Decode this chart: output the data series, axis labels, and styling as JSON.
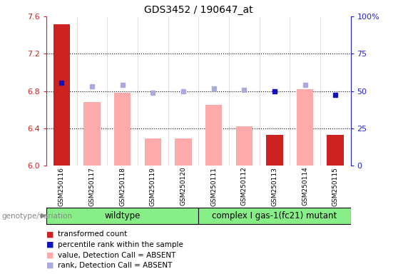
{
  "title": "GDS3452 / 190647_at",
  "samples": [
    "GSM250116",
    "GSM250117",
    "GSM250118",
    "GSM250119",
    "GSM250120",
    "GSM250111",
    "GSM250112",
    "GSM250113",
    "GSM250114",
    "GSM250115"
  ],
  "ylim_left": [
    6.0,
    7.6
  ],
  "ylim_right": [
    0,
    100
  ],
  "yticks_left": [
    6.0,
    6.4,
    6.8,
    7.2,
    7.6
  ],
  "yticks_right": [
    0,
    25,
    50,
    75,
    100
  ],
  "ytick_right_labels": [
    "0",
    "25",
    "50",
    "75",
    "100%"
  ],
  "dotted_lines": [
    7.2,
    6.8,
    6.4
  ],
  "transformed_count": {
    "GSM250116": 7.52,
    "GSM250117": null,
    "GSM250118": null,
    "GSM250119": null,
    "GSM250120": null,
    "GSM250111": null,
    "GSM250112": null,
    "GSM250113": 6.33,
    "GSM250114": null,
    "GSM250115": 6.33
  },
  "percentile_rank": {
    "GSM250116": 6.89,
    "GSM250117": null,
    "GSM250118": null,
    "GSM250119": null,
    "GSM250120": null,
    "GSM250111": null,
    "GSM250112": null,
    "GSM250113": 6.8,
    "GSM250114": null,
    "GSM250115": 6.76
  },
  "value_absent": {
    "GSM250116": null,
    "GSM250117": 6.68,
    "GSM250118": 6.78,
    "GSM250119": 6.29,
    "GSM250120": 6.29,
    "GSM250111": 6.65,
    "GSM250112": 6.42,
    "GSM250113": null,
    "GSM250114": 6.82,
    "GSM250115": null
  },
  "rank_absent": {
    "GSM250116": null,
    "GSM250117": 6.85,
    "GSM250118": 6.87,
    "GSM250119": 6.78,
    "GSM250120": 6.8,
    "GSM250111": 6.83,
    "GSM250112": 6.81,
    "GSM250113": null,
    "GSM250114": 6.87,
    "GSM250115": null
  },
  "bar_color_red": "#cc2222",
  "bar_color_pink": "#ffaaaa",
  "dot_color_dark_blue": "#1111bb",
  "dot_color_light_blue": "#aaaadd",
  "wildtype_color": "#88ee88",
  "mutant_color": "#88ee88",
  "axis_color_left": "#cc2222",
  "axis_color_right": "#2222cc",
  "background_gray": "#d0d0d0",
  "wildtype_label": "wildtype",
  "mutant_label": "complex I gas-1(fc21) mutant",
  "genotype_label": "genotype/variation"
}
